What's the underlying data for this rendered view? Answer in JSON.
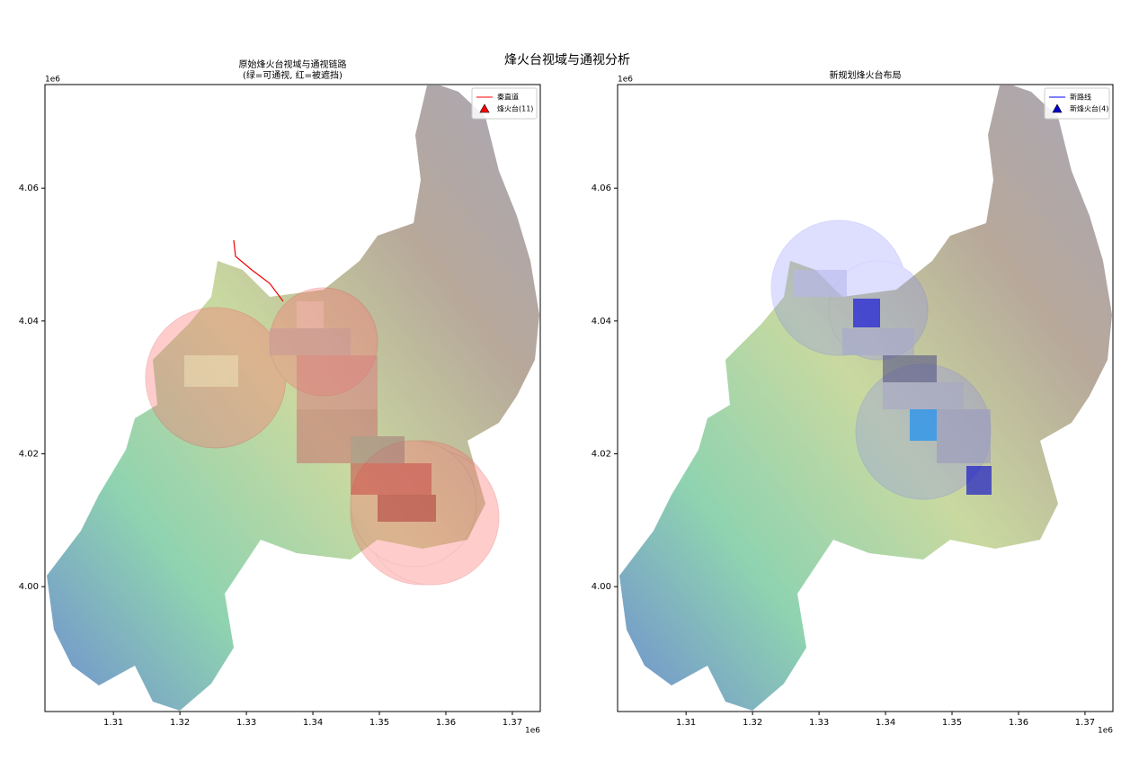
{
  "figure_title": "烽火台视域与通视分析",
  "chart_data": [
    {
      "type": "map",
      "title": "原始烽火台视域与通视链路",
      "subtitle": "(绿=可通视, 红=被遮挡)",
      "xlim": [
        1.2997,
        1.3742
      ],
      "ylim": [
        3.9812,
        4.0756
      ],
      "xticks": [
        1.31,
        1.32,
        1.33,
        1.34,
        1.35,
        1.36,
        1.37
      ],
      "yticks": [
        {
          "value": 4.0,
          "label": "4.00"
        },
        {
          "value": 4.02,
          "label": "4.02"
        },
        {
          "value": 4.04,
          "label": "4.04"
        },
        {
          "value": 4.06,
          "label": "4.06"
        }
      ],
      "x_offset": "1e6",
      "y_offset": "1e6",
      "legend": "upper right",
      "series": [
        {
          "name": "秦直道",
          "color": "#ff0000",
          "marker": "line"
        },
        {
          "name": "烽火台(11)",
          "color": "#ff0000",
          "marker": "triangle"
        }
      ]
    },
    {
      "type": "map",
      "title": "新规划烽火台布局",
      "xlim": [
        1.2997,
        1.3742
      ],
      "ylim": [
        3.9812,
        4.0756
      ],
      "xticks": [
        1.31,
        1.32,
        1.33,
        1.34,
        1.35,
        1.36,
        1.37
      ],
      "yticks": [
        {
          "value": 4.0,
          "label": "4.00"
        },
        {
          "value": 4.02,
          "label": "4.02"
        },
        {
          "value": 4.04,
          "label": "4.04"
        },
        {
          "value": 4.06,
          "label": "4.06"
        }
      ],
      "x_offset": "1e6",
      "y_offset": "1e6",
      "legend": "upper right",
      "series": [
        {
          "name": "新路线",
          "color": "#0000ff",
          "marker": "line"
        },
        {
          "name": "新烽火台(4)",
          "color": "#0000cc",
          "marker": "triangle"
        }
      ]
    }
  ]
}
